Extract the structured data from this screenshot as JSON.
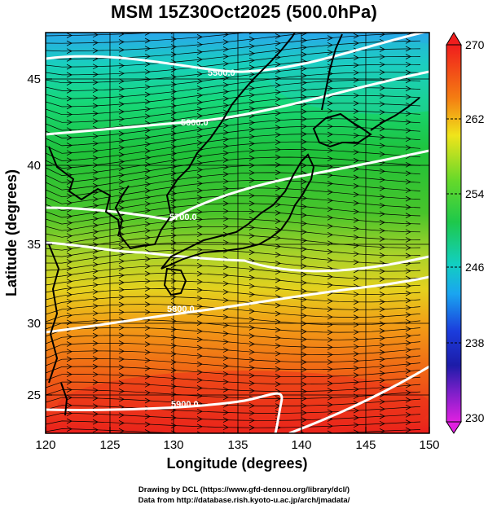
{
  "title": "MSM 15Z30Oct2025 (500.0hPa)",
  "map": {
    "xlabel": "Longitude (degrees)",
    "ylabel": "Latitude  (degrees)",
    "x_ticks": [
      "120",
      "125",
      "130",
      "135",
      "140",
      "145",
      "150"
    ],
    "y_ticks": [
      "25",
      "30",
      "35",
      "40",
      "45"
    ],
    "contour_labels": [
      "5500.0",
      "5600.0",
      "5700.0",
      "5800.0",
      "5900.0"
    ],
    "colors": {
      "coastline": "#000000",
      "streamline": "#000000",
      "contour": "#ffffff"
    }
  },
  "colorbar": {
    "labels": [
      "270",
      "262",
      "254",
      "246",
      "238",
      "230"
    ]
  },
  "footer": {
    "line1": "Drawing by DCL (https://www.gfd-dennou.org/library/dcl/)",
    "line2": "Data from http://database.rish.kyoto-u.ac.jp/arch/jmadata/"
  }
}
